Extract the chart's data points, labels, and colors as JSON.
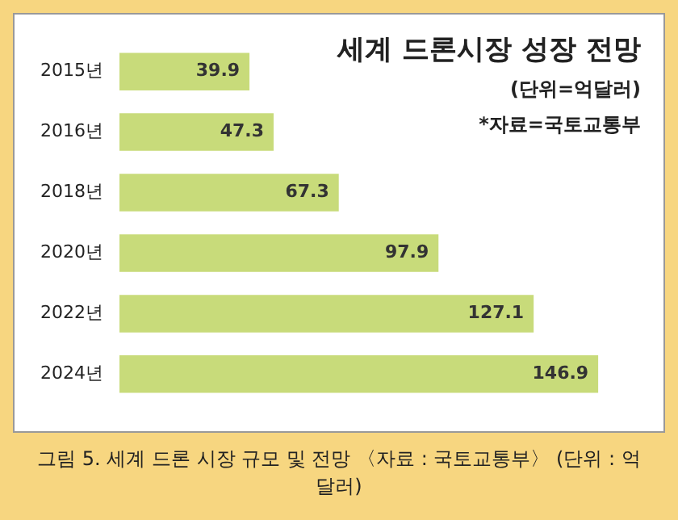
{
  "chart_data": {
    "type": "bar",
    "orientation": "horizontal",
    "title": "세계 드론시장 성장 전망",
    "subtitle": "(단위=억달러)",
    "annotations": [
      "*자료=국토교통부",
      "그림 5. 세계 드론 시장 규모 및 전망 〈자료 : 국토교통부〉 (단위 : 억 달러)"
    ],
    "categories": [
      "2015년",
      "2016년",
      "2018년",
      "2020년",
      "2022년",
      "2024년"
    ],
    "values": [
      39.9,
      47.3,
      67.3,
      97.9,
      127.1,
      146.9
    ],
    "color": "#c8db7a",
    "data_labels": true,
    "grid": false,
    "legend": false,
    "tick_labels": "y"
  }
}
